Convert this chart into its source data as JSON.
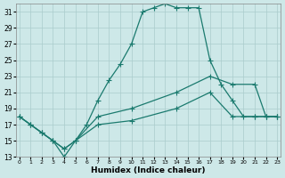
{
  "xlabel": "Humidex (Indice chaleur)",
  "bg_color": "#cde8e8",
  "grid_color": "#aacccc",
  "line_color": "#1a7a6e",
  "xlim": [
    -0.3,
    23.3
  ],
  "ylim": [
    13,
    32
  ],
  "yticks": [
    13,
    15,
    17,
    19,
    21,
    23,
    25,
    27,
    29,
    31
  ],
  "xticks": [
    0,
    1,
    2,
    3,
    4,
    5,
    6,
    7,
    8,
    9,
    10,
    11,
    12,
    13,
    14,
    15,
    16,
    17,
    18,
    19,
    20,
    21,
    22,
    23
  ],
  "curve1_x": [
    0,
    1,
    2,
    3,
    4,
    5,
    6,
    7,
    8,
    9,
    10,
    11,
    12,
    13,
    14,
    15,
    16,
    17,
    18,
    19,
    20,
    21,
    22,
    23
  ],
  "curve1_y": [
    18,
    17,
    16,
    15,
    13,
    15,
    17,
    20,
    22.5,
    24.5,
    27,
    31,
    31.5,
    32,
    31.5,
    31.5,
    31.5,
    25,
    22,
    20,
    18,
    18,
    18,
    18
  ],
  "curve2_x": [
    0,
    1,
    2,
    3,
    4,
    5,
    7,
    10,
    14,
    17,
    19,
    21,
    22,
    23
  ],
  "curve2_y": [
    18,
    17,
    16,
    15,
    14,
    15,
    18,
    19,
    21,
    23,
    22,
    22,
    18,
    18
  ],
  "curve3_x": [
    0,
    1,
    2,
    3,
    4,
    5,
    7,
    10,
    14,
    17,
    19,
    21,
    22,
    23
  ],
  "curve3_y": [
    18,
    17,
    16,
    15,
    14,
    15,
    17,
    17.5,
    19,
    21,
    18,
    18,
    18,
    18
  ]
}
